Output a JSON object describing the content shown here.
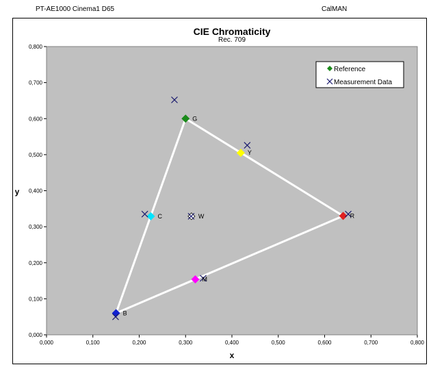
{
  "header": {
    "left": "PT-AE1000 Cinema1 D65",
    "right": "CalMAN"
  },
  "chart_data": {
    "type": "scatter",
    "title": "CIE Chromaticity",
    "subtitle": "Rec. 709",
    "xlabel": "x",
    "ylabel": "y",
    "xlim": [
      0,
      0.8
    ],
    "ylim": [
      0,
      0.8
    ],
    "x_ticks": [
      "0,000",
      "0,100",
      "0,200",
      "0,300",
      "0,400",
      "0,500",
      "0,600",
      "0,700",
      "0,800"
    ],
    "y_ticks": [
      "0,000",
      "0,100",
      "0,200",
      "0,300",
      "0,400",
      "0,500",
      "0,600",
      "0,700",
      "0,800"
    ],
    "legend_position": "top-right",
    "series": [
      {
        "name": "Reference",
        "marker": "diamond",
        "points": [
          {
            "label": "G",
            "x": 0.3,
            "y": 0.6,
            "color": "#1a8a1a"
          },
          {
            "label": "Y",
            "x": 0.419,
            "y": 0.505,
            "color": "#ffff00"
          },
          {
            "label": "R",
            "x": 0.64,
            "y": 0.33,
            "color": "#e02020"
          },
          {
            "label": "M",
            "x": 0.321,
            "y": 0.154,
            "color": "#ff00ff"
          },
          {
            "label": "B",
            "x": 0.15,
            "y": 0.06,
            "color": "#1020d0"
          },
          {
            "label": "C",
            "x": 0.225,
            "y": 0.329,
            "color": "#00e5ff"
          },
          {
            "label": "W",
            "x": 0.3127,
            "y": 0.329,
            "color": "#ffffff"
          }
        ]
      },
      {
        "name": "Measurement Data",
        "marker": "x",
        "color": "#1a1a6e",
        "points": [
          {
            "x": 0.276,
            "y": 0.652
          },
          {
            "x": 0.433,
            "y": 0.526
          },
          {
            "x": 0.651,
            "y": 0.335
          },
          {
            "x": 0.338,
            "y": 0.157
          },
          {
            "x": 0.149,
            "y": 0.05
          },
          {
            "x": 0.212,
            "y": 0.335
          },
          {
            "x": 0.312,
            "y": 0.329
          }
        ]
      }
    ],
    "gamut_triangle": [
      "G",
      "R",
      "B"
    ],
    "colors": {
      "plot_background": "#c0c0c0",
      "triangle": "#ffffff",
      "legend_reference": "#1a8a1a",
      "legend_measurement": "#1a1a6e"
    }
  }
}
